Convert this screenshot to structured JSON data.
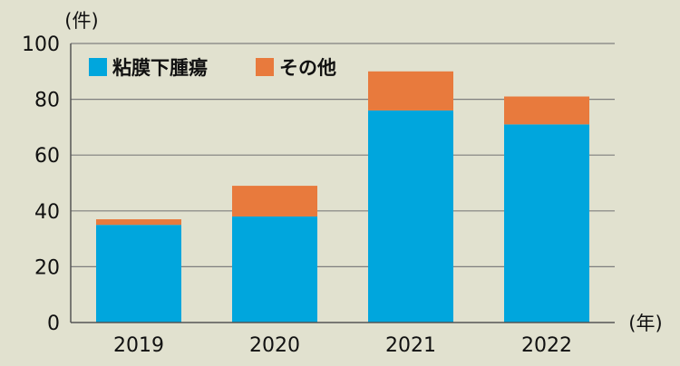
{
  "chart_data": {
    "type": "bar",
    "stacked": true,
    "categories": [
      "2019",
      "2020",
      "2021",
      "2022"
    ],
    "series": [
      {
        "name": "粘膜下腫瘍",
        "color": "#00a6dd",
        "values": [
          35,
          38,
          76,
          71
        ]
      },
      {
        "name": "その他",
        "color": "#e87a3d",
        "values": [
          2,
          11,
          14,
          10
        ]
      }
    ],
    "yticks": [
      0,
      20,
      40,
      60,
      80,
      100
    ],
    "ylim": [
      0,
      100
    ],
    "y_unit": "(件)",
    "x_unit": "(年)",
    "grid": true,
    "legend": "top-left"
  }
}
